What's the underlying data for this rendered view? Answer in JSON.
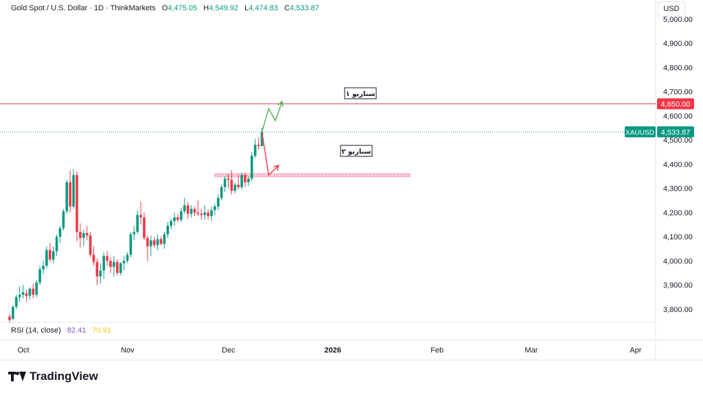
{
  "header": {
    "symbol_line": "Gold Spot / U.S. Dollar · 1D · ThinkMarkets",
    "open_label": "O",
    "open_value": "4,475.05",
    "high_label": "H",
    "high_value": "4,549.92",
    "low_label": "L",
    "low_value": "4,474.83",
    "close_label": "C",
    "close_value": "4,533.87"
  },
  "currency": "USD",
  "rsi": {
    "label": "RSI (14, close)",
    "value1": "82.41",
    "value2": "70.91"
  },
  "brand": "TradingView",
  "colors": {
    "up": "#089981",
    "down": "#f23645",
    "green_arrow": "#4caf50",
    "red_arrow": "#f23645"
  },
  "chart_data": {
    "type": "candlestick",
    "ylim": [
      3740,
      5000
    ],
    "y_tick_labels": [
      "3,800.00",
      "3,900.00",
      "4,000.00",
      "4,100.00",
      "4,200.00",
      "4,300.00",
      "4,400.00",
      "4,500.00",
      "4,600.00",
      "4,700.00",
      "4,800.00",
      "4,900.00",
      "5,000.00"
    ],
    "x_tick_labels": [
      {
        "label": "Oct",
        "day": 0
      },
      {
        "label": "Nov",
        "day": 31
      },
      {
        "label": "Dec",
        "day": 61
      },
      {
        "label": "2026",
        "day": 92
      },
      {
        "label": "Feb",
        "day": 123
      },
      {
        "label": "Mar",
        "day": 151
      },
      {
        "label": "Apr",
        "day": 182
      }
    ],
    "candles": [
      {
        "day": 0,
        "o": 3770,
        "h": 3780,
        "l": 3745,
        "c": 3755
      },
      {
        "day": 1,
        "o": 3760,
        "h": 3815,
        "l": 3755,
        "c": 3810
      },
      {
        "day": 2,
        "o": 3810,
        "h": 3860,
        "l": 3800,
        "c": 3850
      },
      {
        "day": 3,
        "o": 3850,
        "h": 3895,
        "l": 3830,
        "c": 3860
      },
      {
        "day": 4,
        "o": 3860,
        "h": 3900,
        "l": 3845,
        "c": 3870
      },
      {
        "day": 5,
        "o": 3865,
        "h": 3880,
        "l": 3830,
        "c": 3855
      },
      {
        "day": 6,
        "o": 3855,
        "h": 3890,
        "l": 3840,
        "c": 3885
      },
      {
        "day": 7,
        "o": 3885,
        "h": 3905,
        "l": 3845,
        "c": 3860
      },
      {
        "day": 8,
        "o": 3860,
        "h": 3920,
        "l": 3850,
        "c": 3910
      },
      {
        "day": 9,
        "o": 3910,
        "h": 3980,
        "l": 3900,
        "c": 3965
      },
      {
        "day": 10,
        "o": 3965,
        "h": 4000,
        "l": 3945,
        "c": 3980
      },
      {
        "day": 11,
        "o": 3980,
        "h": 4060,
        "l": 3970,
        "c": 4045
      },
      {
        "day": 12,
        "o": 4045,
        "h": 4075,
        "l": 3995,
        "c": 4005
      },
      {
        "day": 13,
        "o": 4005,
        "h": 4060,
        "l": 3990,
        "c": 4040
      },
      {
        "day": 14,
        "o": 4040,
        "h": 4110,
        "l": 4020,
        "c": 4100
      },
      {
        "day": 15,
        "o": 4100,
        "h": 4145,
        "l": 4075,
        "c": 4135
      },
      {
        "day": 16,
        "o": 4135,
        "h": 4215,
        "l": 4125,
        "c": 4205
      },
      {
        "day": 17,
        "o": 4205,
        "h": 4335,
        "l": 4195,
        "c": 4325
      },
      {
        "day": 18,
        "o": 4325,
        "h": 4375,
        "l": 4200,
        "c": 4225
      },
      {
        "day": 19,
        "o": 4225,
        "h": 4380,
        "l": 4215,
        "c": 4355
      },
      {
        "day": 20,
        "o": 4355,
        "h": 4370,
        "l": 4080,
        "c": 4120
      },
      {
        "day": 21,
        "o": 4120,
        "h": 4155,
        "l": 4055,
        "c": 4095
      },
      {
        "day": 22,
        "o": 4095,
        "h": 4130,
        "l": 4060,
        "c": 4115
      },
      {
        "day": 23,
        "o": 4115,
        "h": 4145,
        "l": 4085,
        "c": 4105
      },
      {
        "day": 24,
        "o": 4105,
        "h": 4120,
        "l": 4015,
        "c": 4025
      },
      {
        "day": 25,
        "o": 4025,
        "h": 4060,
        "l": 3980,
        "c": 3995
      },
      {
        "day": 26,
        "o": 3995,
        "h": 4010,
        "l": 3900,
        "c": 3935
      },
      {
        "day": 27,
        "o": 3935,
        "h": 3990,
        "l": 3905,
        "c": 3960
      },
      {
        "day": 28,
        "o": 3960,
        "h": 4035,
        "l": 3925,
        "c": 4020
      },
      {
        "day": 29,
        "o": 4020,
        "h": 4040,
        "l": 3980,
        "c": 4000
      },
      {
        "day": 30,
        "o": 4000,
        "h": 4015,
        "l": 3950,
        "c": 3975
      },
      {
        "day": 31,
        "o": 3975,
        "h": 4020,
        "l": 3935,
        "c": 3995
      },
      {
        "day": 32,
        "o": 3995,
        "h": 4005,
        "l": 3940,
        "c": 3950
      },
      {
        "day": 33,
        "o": 3950,
        "h": 3995,
        "l": 3940,
        "c": 3990
      },
      {
        "day": 34,
        "o": 3990,
        "h": 4020,
        "l": 3960,
        "c": 4000
      },
      {
        "day": 35,
        "o": 4000,
        "h": 4035,
        "l": 3990,
        "c": 4025
      },
      {
        "day": 36,
        "o": 4025,
        "h": 4120,
        "l": 4015,
        "c": 4110
      },
      {
        "day": 37,
        "o": 4110,
        "h": 4145,
        "l": 4085,
        "c": 4120
      },
      {
        "day": 38,
        "o": 4120,
        "h": 4210,
        "l": 4110,
        "c": 4190
      },
      {
        "day": 39,
        "o": 4190,
        "h": 4245,
        "l": 4150,
        "c": 4180
      },
      {
        "day": 40,
        "o": 4180,
        "h": 4200,
        "l": 4085,
        "c": 4095
      },
      {
        "day": 41,
        "o": 4095,
        "h": 4105,
        "l": 4000,
        "c": 4060
      },
      {
        "day": 42,
        "o": 4060,
        "h": 4105,
        "l": 4020,
        "c": 4085
      },
      {
        "day": 43,
        "o": 4085,
        "h": 4100,
        "l": 4055,
        "c": 4065
      },
      {
        "day": 44,
        "o": 4065,
        "h": 4110,
        "l": 4045,
        "c": 4090
      },
      {
        "day": 45,
        "o": 4090,
        "h": 4100,
        "l": 4065,
        "c": 4070
      },
      {
        "day": 46,
        "o": 4070,
        "h": 4120,
        "l": 4050,
        "c": 4110
      },
      {
        "day": 47,
        "o": 4110,
        "h": 4160,
        "l": 4095,
        "c": 4145
      },
      {
        "day": 48,
        "o": 4145,
        "h": 4175,
        "l": 4130,
        "c": 4165
      },
      {
        "day": 49,
        "o": 4165,
        "h": 4200,
        "l": 4145,
        "c": 4180
      },
      {
        "day": 50,
        "o": 4180,
        "h": 4195,
        "l": 4160,
        "c": 4170
      },
      {
        "day": 51,
        "o": 4170,
        "h": 4220,
        "l": 4160,
        "c": 4205
      },
      {
        "day": 52,
        "o": 4205,
        "h": 4260,
        "l": 4195,
        "c": 4230
      },
      {
        "day": 53,
        "o": 4230,
        "h": 4245,
        "l": 4175,
        "c": 4195
      },
      {
        "day": 54,
        "o": 4195,
        "h": 4230,
        "l": 4180,
        "c": 4215
      },
      {
        "day": 55,
        "o": 4215,
        "h": 4225,
        "l": 4185,
        "c": 4200
      },
      {
        "day": 56,
        "o": 4200,
        "h": 4250,
        "l": 4185,
        "c": 4195
      },
      {
        "day": 57,
        "o": 4195,
        "h": 4215,
        "l": 4170,
        "c": 4190
      },
      {
        "day": 58,
        "o": 4190,
        "h": 4230,
        "l": 4170,
        "c": 4200
      },
      {
        "day": 59,
        "o": 4200,
        "h": 4215,
        "l": 4170,
        "c": 4185
      },
      {
        "day": 60,
        "o": 4185,
        "h": 4225,
        "l": 4165,
        "c": 4210
      },
      {
        "day": 61,
        "o": 4210,
        "h": 4235,
        "l": 4190,
        "c": 4225
      },
      {
        "day": 62,
        "o": 4225,
        "h": 4275,
        "l": 4210,
        "c": 4260
      },
      {
        "day": 63,
        "o": 4260,
        "h": 4315,
        "l": 4250,
        "c": 4305
      },
      {
        "day": 64,
        "o": 4305,
        "h": 4350,
        "l": 4285,
        "c": 4340
      },
      {
        "day": 65,
        "o": 4340,
        "h": 4360,
        "l": 4300,
        "c": 4335
      },
      {
        "day": 66,
        "o": 4335,
        "h": 4375,
        "l": 4275,
        "c": 4290
      },
      {
        "day": 67,
        "o": 4290,
        "h": 4325,
        "l": 4280,
        "c": 4315
      },
      {
        "day": 68,
        "o": 4315,
        "h": 4355,
        "l": 4295,
        "c": 4305
      },
      {
        "day": 69,
        "o": 4305,
        "h": 4365,
        "l": 4295,
        "c": 4355
      },
      {
        "day": 70,
        "o": 4355,
        "h": 4365,
        "l": 4305,
        "c": 4325
      },
      {
        "day": 71,
        "o": 4325,
        "h": 4350,
        "l": 4310,
        "c": 4340
      },
      {
        "day": 72,
        "o": 4340,
        "h": 4450,
        "l": 4330,
        "c": 4435
      },
      {
        "day": 73,
        "o": 4435,
        "h": 4505,
        "l": 4425,
        "c": 4480
      },
      {
        "day": 74,
        "o": 4480,
        "h": 4510,
        "l": 4460,
        "c": 4475
      },
      {
        "day": 75,
        "o": 4475,
        "h": 4550,
        "l": 4475,
        "c": 4534
      }
    ],
    "horizontal_levels": [
      {
        "name": "price-label",
        "value": 4650,
        "label": "4,650.00",
        "color": "#f23645"
      },
      {
        "name": "XAUUSD",
        "value": 4533.87,
        "label": "4,533.87",
        "color": "#089981"
      }
    ],
    "support_zone": {
      "low": 4348,
      "high": 4360,
      "from_day": 61,
      "to_day": 119
    },
    "scenario_1": {
      "label": "سناریو ۱",
      "path": [
        [
          75,
          4534
        ],
        [
          77,
          4630
        ],
        [
          79,
          4580
        ],
        [
          81,
          4660
        ]
      ]
    },
    "scenario_2": {
      "label": "سناریو ۲",
      "path": [
        [
          75,
          4534
        ],
        [
          77,
          4355
        ],
        [
          80,
          4395
        ]
      ]
    }
  }
}
